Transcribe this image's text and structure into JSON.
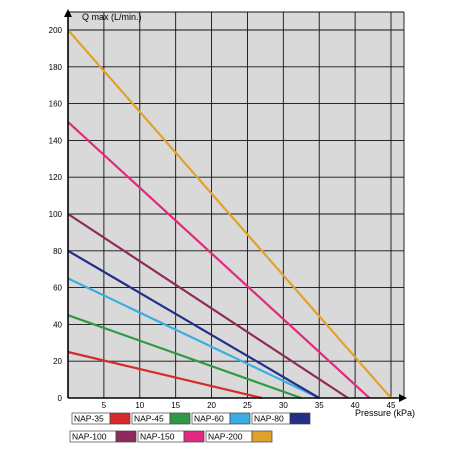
{
  "chart_data": {
    "type": "line",
    "title": "",
    "ylabel": "Q max (L/min.)",
    "xlabel": "Pressure (kPa)",
    "xlim": [
      0,
      45
    ],
    "ylim": [
      0,
      200
    ],
    "xticks": [
      "5",
      "10",
      "15",
      "20",
      "25",
      "30",
      "35",
      "40",
      "45"
    ],
    "yticks": [
      "0",
      "20",
      "40",
      "60",
      "80",
      "100",
      "120",
      "140",
      "160",
      "180",
      "200"
    ],
    "grid": true,
    "background_color": "#d9d9d9",
    "legend_position": "bottom",
    "series": [
      {
        "name": "NAP-35",
        "color": "#d72b2b",
        "x": [
          0,
          27
        ],
        "y": [
          25,
          0
        ]
      },
      {
        "name": "NAP-45",
        "color": "#2e9a48",
        "x": [
          0,
          32.5
        ],
        "y": [
          45,
          0
        ]
      },
      {
        "name": "NAP-60",
        "color": "#3aaee2",
        "x": [
          0,
          35
        ],
        "y": [
          65,
          0
        ]
      },
      {
        "name": "NAP-80",
        "color": "#232e86",
        "x": [
          0,
          35
        ],
        "y": [
          80,
          0
        ]
      },
      {
        "name": "NAP-100",
        "color": "#8e2b5c",
        "x": [
          0,
          39
        ],
        "y": [
          100,
          0
        ]
      },
      {
        "name": "NAP-150",
        "color": "#e0297f",
        "x": [
          0,
          42
        ],
        "y": [
          150,
          0
        ]
      },
      {
        "name": "NAP-200",
        "color": "#e0a22a",
        "x": [
          0,
          45
        ],
        "y": [
          200,
          0
        ]
      }
    ]
  }
}
